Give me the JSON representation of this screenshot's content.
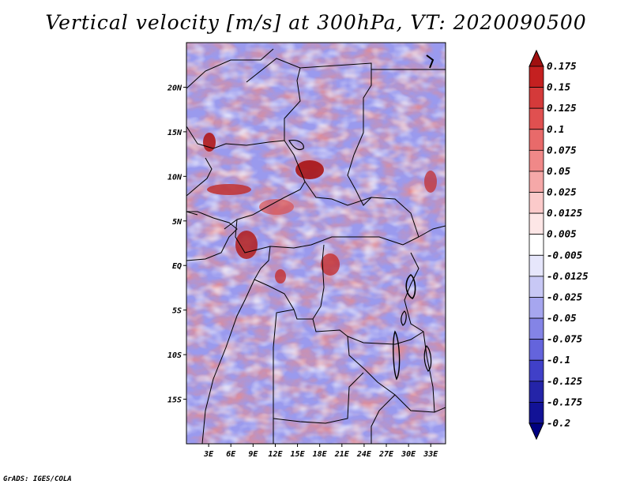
{
  "title": "Vertical velocity [m/s] at 300hPa, VT: 2020090500",
  "footer": "GrADS: IGES/COLA",
  "chart_data": {
    "type": "heatmap",
    "variable": "Vertical velocity",
    "units": "m/s",
    "level": "300hPa",
    "valid_time": "2020090500",
    "lon_range": [
      0,
      35
    ],
    "lat_range": [
      -20,
      25
    ],
    "x_ticks": [
      {
        "lon": 3,
        "label": "3E"
      },
      {
        "lon": 6,
        "label": "6E"
      },
      {
        "lon": 9,
        "label": "9E"
      },
      {
        "lon": 12,
        "label": "12E"
      },
      {
        "lon": 15,
        "label": "15E"
      },
      {
        "lon": 18,
        "label": "18E"
      },
      {
        "lon": 21,
        "label": "21E"
      },
      {
        "lon": 24,
        "label": "24E"
      },
      {
        "lon": 27,
        "label": "27E"
      },
      {
        "lon": 30,
        "label": "30E"
      },
      {
        "lon": 33,
        "label": "33E"
      }
    ],
    "y_ticks": [
      {
        "lat": 20,
        "label": "20N"
      },
      {
        "lat": 15,
        "label": "15N"
      },
      {
        "lat": 10,
        "label": "10N"
      },
      {
        "lat": 5,
        "label": "5N"
      },
      {
        "lat": 0,
        "label": "EQ"
      },
      {
        "lat": -5,
        "label": "5S"
      },
      {
        "lat": -10,
        "label": "10S"
      },
      {
        "lat": -15,
        "label": "15S"
      }
    ],
    "colorbar": {
      "levels": [
        "0.175",
        "0.15",
        "0.125",
        "0.1",
        "0.075",
        "0.05",
        "0.025",
        "0.0125",
        "0.005",
        "-0.005",
        "-0.0125",
        "-0.025",
        "-0.05",
        "-0.075",
        "-0.1",
        "-0.125",
        "-0.175",
        "-0.2"
      ],
      "colors": [
        "#a01010",
        "#c42020",
        "#d43a3a",
        "#e05050",
        "#e86a6a",
        "#f08888",
        "#f5a8a8",
        "#fbcaca",
        "#fde6e6",
        "#ffffff",
        "#e6e6fb",
        "#c8c8f5",
        "#a6a6ef",
        "#8484e6",
        "#6464dc",
        "#4040c8",
        "#2424a8",
        "#121296",
        "#000080"
      ]
    },
    "features": [
      "coastlines",
      "country boundaries"
    ]
  }
}
